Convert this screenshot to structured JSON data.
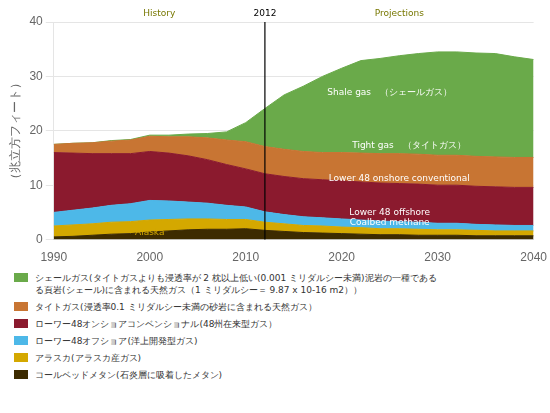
{
  "chart_data": {
    "type": "area",
    "stacked": true,
    "ylabel": "（兆立方フィート）",
    "x": [
      1990,
      1992,
      1994,
      1996,
      1998,
      2000,
      2002,
      2004,
      2006,
      2008,
      2010,
      2012,
      2014,
      2016,
      2018,
      2020,
      2022,
      2024,
      2026,
      2028,
      2030,
      2032,
      2034,
      2036,
      2038,
      2040
    ],
    "series": [
      {
        "name": "コールベッドメタン(石炎層に吸着したメタン)",
        "color": "#3d2b00",
        "values": [
          0.5,
          0.6,
          0.8,
          1.0,
          1.1,
          1.4,
          1.6,
          1.8,
          1.9,
          1.9,
          2.0,
          1.7,
          1.5,
          1.3,
          1.2,
          1.1,
          1.0,
          0.9,
          0.9,
          0.8,
          0.8,
          0.8,
          0.7,
          0.7,
          0.7,
          0.7
        ]
      },
      {
        "name": "アラスカ(アラスカ産ガス)",
        "color": "#d4a800",
        "values": [
          2.0,
          2.1,
          2.1,
          2.2,
          2.2,
          2.2,
          2.1,
          2.0,
          1.9,
          1.8,
          1.7,
          1.5,
          1.4,
          1.3,
          1.3,
          1.2,
          1.2,
          1.1,
          1.1,
          1.1,
          1.0,
          1.0,
          1.0,
          0.9,
          0.9,
          0.9
        ]
      },
      {
        "name": "ローワー48オフショア(洋上開発型ガス)",
        "color": "#4db8e8",
        "values": [
          2.5,
          2.7,
          2.9,
          3.1,
          3.3,
          3.6,
          3.4,
          3.1,
          2.9,
          2.6,
          2.3,
          1.9,
          1.7,
          1.6,
          1.5,
          1.5,
          1.4,
          1.4,
          1.3,
          1.3,
          1.2,
          1.2,
          1.1,
          1.1,
          1.0,
          1.0
        ]
      },
      {
        "name": "ローワー48オンショアコンベンショナル(48州在来型ガス）",
        "color": "#8b1a2e",
        "values": [
          11.0,
          10.5,
          10.0,
          9.5,
          9.2,
          9.0,
          8.8,
          8.5,
          8.0,
          7.5,
          7.0,
          7.0,
          7.0,
          7.0,
          7.0,
          7.0,
          7.0,
          7.0,
          7.0,
          7.0,
          7.0,
          7.0,
          7.0,
          7.0,
          7.0,
          7.0
        ]
      },
      {
        "name": "タイトガス(浸透率0.1 ミリダルシー未満の砂岩に含まれる天然ガス）",
        "color": "#c87533",
        "values": [
          1.5,
          1.8,
          2.0,
          2.3,
          2.5,
          2.8,
          3.0,
          3.5,
          4.0,
          4.5,
          5.0,
          5.0,
          5.0,
          5.0,
          5.0,
          5.2,
          5.3,
          5.4,
          5.5,
          5.5,
          5.5,
          5.5,
          5.5,
          5.5,
          5.5,
          5.5
        ]
      },
      {
        "name": "シェールガス(タイトガスよりも浸透率が 2 枕以上低い(0.001 ミリダルシー未満)泥岩の一種である\nる頁岩(シェール)に含まれる天然ガス（1 ミリダルシー＝ 9.87 x 10-16 m2））",
        "color": "#6aaa4a",
        "values": [
          0.0,
          0.0,
          0.0,
          0.1,
          0.1,
          0.2,
          0.3,
          0.5,
          0.8,
          1.5,
          3.5,
          7.0,
          10.0,
          12.0,
          14.0,
          15.5,
          17.0,
          17.5,
          18.0,
          18.5,
          19.0,
          19.0,
          19.0,
          19.0,
          18.5,
          18.0
        ]
      }
    ],
    "xlim": [
      1990,
      2040
    ],
    "xticks": [
      1990,
      2000,
      2010,
      2020,
      2030,
      2040
    ],
    "ylim": [
      0,
      40
    ],
    "yticks": [
      0,
      10,
      20,
      30,
      40
    ],
    "grid": true,
    "legend": "bottom",
    "vertical_line": 2012,
    "annotations": [
      {
        "text": "History",
        "x": 2001,
        "y": 41.5,
        "color": "#777700"
      },
      {
        "text": "2012",
        "x": 2012,
        "y": 41.5,
        "color": "#000000"
      },
      {
        "text": "Projections",
        "x": 2026,
        "y": 41.5,
        "color": "#777700"
      },
      {
        "text": "Shale gas　（シェールガス）",
        "x": 2025,
        "y": 27.0,
        "color": "#ffffff"
      },
      {
        "text": "Tight gas　（タイトガス）",
        "x": 2027,
        "y": 17.2,
        "color": "#ffffff"
      },
      {
        "text": "Lower 48 onshore conventional",
        "x": 2026,
        "y": 11.2,
        "color": "#ffffff"
      },
      {
        "text": "Lower 48 offshore",
        "x": 2025,
        "y": 5.0,
        "color": "#ffffff"
      },
      {
        "text": "Coalbed methane",
        "x": 2025,
        "y": 3.1,
        "color": "#ffffff"
      },
      {
        "text": "Alaska",
        "x": 2000,
        "y": 1.3,
        "color": "#d4a800"
      }
    ]
  }
}
